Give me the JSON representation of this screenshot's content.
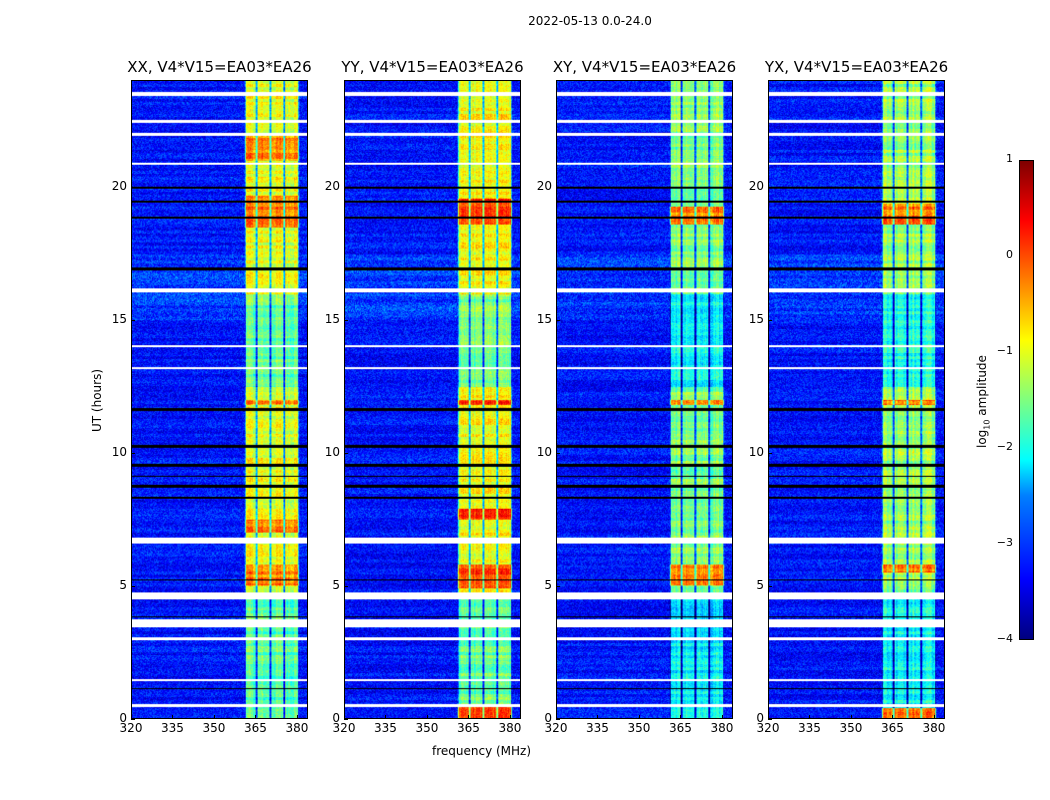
{
  "suptitle": "2022-05-13 0.0-24.0",
  "chart_data": {
    "type": "heatmap",
    "title": "2022-05-13 0.0-24.0",
    "xlabel": "frequency (MHz)",
    "ylabel": "UT (hours)",
    "xlim": [
      320,
      384
    ],
    "ylim": [
      0,
      24
    ],
    "xticks": [
      320,
      335,
      350,
      365,
      380
    ],
    "yticks": [
      0,
      5,
      10,
      15,
      20
    ],
    "colormap": "jet",
    "colorbar": {
      "label_prefix": "log",
      "label_sub": "10",
      "label_suffix": " amplitude",
      "range": [
        -4,
        1
      ],
      "ticks": [
        1,
        0,
        -1,
        -2,
        -3,
        -4
      ],
      "tick_labels": [
        "1",
        "0",
        "−1",
        "−2",
        "−3",
        "−4"
      ]
    },
    "background_level": -3.3,
    "band_range_mhz": [
      361,
      381
    ],
    "subband_edges_mhz": [
      361,
      365.5,
      370.5,
      375.5,
      381
    ],
    "flagged_white_hours": [
      [
        23.45,
        23.6
      ],
      [
        22.45,
        22.55
      ],
      [
        21.95,
        22.05
      ],
      [
        20.85,
        20.95
      ],
      [
        16.05,
        16.2
      ],
      [
        14.0,
        14.05
      ],
      [
        13.15,
        13.25
      ],
      [
        6.6,
        6.8
      ],
      [
        4.5,
        4.75
      ],
      [
        3.45,
        3.75
      ],
      [
        2.95,
        3.05
      ],
      [
        1.4,
        1.5
      ],
      [
        0.45,
        0.55
      ]
    ],
    "flagged_black_hours": [
      [
        19.95,
        20.05
      ],
      [
        19.45,
        19.5
      ],
      [
        18.85,
        18.9
      ],
      [
        16.9,
        17.0
      ],
      [
        11.6,
        11.7
      ],
      [
        10.2,
        10.3
      ],
      [
        9.5,
        9.6
      ],
      [
        9.1,
        9.15
      ],
      [
        8.7,
        8.8
      ],
      [
        8.3,
        8.35
      ],
      [
        5.2,
        5.25
      ],
      [
        3.8,
        3.85
      ],
      [
        1.1,
        1.15
      ]
    ],
    "panels": [
      {
        "title": "XX, V4*V15=EA03*EA26",
        "band_level": -1.0,
        "hot_hours": [
          [
            21,
            22
          ],
          [
            18.5,
            19.7
          ],
          [
            11.8,
            12
          ],
          [
            7,
            7.5
          ],
          [
            5,
            5.8
          ]
        ],
        "hot_level": -0.3
      },
      {
        "title": "YY, V4*V15=EA03*EA26",
        "band_level": -0.9,
        "hot_hours": [
          [
            18.6,
            19.6
          ],
          [
            11.8,
            12
          ],
          [
            7.5,
            7.9
          ],
          [
            4.9,
            5.8
          ],
          [
            0,
            0.5
          ]
        ],
        "hot_level": 0.1
      },
      {
        "title": "XY, V4*V15=EA03*EA26",
        "band_level": -1.5,
        "hot_hours": [
          [
            18.6,
            19.3
          ],
          [
            11.8,
            12
          ],
          [
            5,
            5.8
          ]
        ],
        "hot_level": -0.3
      },
      {
        "title": "YX, V4*V15=EA03*EA26",
        "band_level": -1.4,
        "hot_hours": [
          [
            18.6,
            19.4
          ],
          [
            11.8,
            12
          ],
          [
            5.5,
            5.8
          ],
          [
            0,
            0.4
          ]
        ],
        "hot_level": -0.2
      }
    ]
  }
}
